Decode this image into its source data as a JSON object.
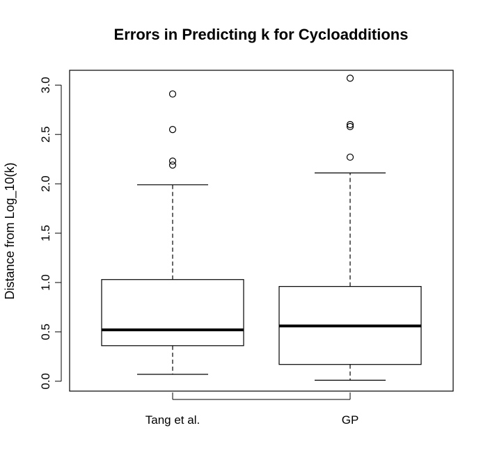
{
  "chart_data": {
    "type": "boxplot",
    "title": "Errors in Predicting k for Cycloadditions",
    "xlabel": "",
    "ylabel": "Distance from Log_10(k)",
    "ylim": [
      -0.1,
      3.15
    ],
    "yticks": [
      "0.0",
      "0.5",
      "1.0",
      "1.5",
      "2.0",
      "2.5",
      "3.0"
    ],
    "ytick_values": [
      0.0,
      0.5,
      1.0,
      1.5,
      2.0,
      2.5,
      3.0
    ],
    "categories": [
      "Tang et al.",
      "GP"
    ],
    "boxes": [
      {
        "category": "Tang et al.",
        "whisker_low": 0.07,
        "q1": 0.36,
        "median": 0.52,
        "q3": 1.03,
        "whisker_high": 1.99,
        "outliers": [
          2.19,
          2.23,
          2.55,
          2.91
        ]
      },
      {
        "category": "GP",
        "whisker_low": 0.01,
        "q1": 0.17,
        "median": 0.56,
        "q3": 0.96,
        "whisker_high": 2.11,
        "outliers": [
          2.27,
          2.58,
          2.6,
          3.07
        ]
      }
    ],
    "grid": false,
    "legend": "none",
    "colors": {
      "box_stroke": "#000000",
      "median": "#000000",
      "background": "#ffffff"
    }
  }
}
